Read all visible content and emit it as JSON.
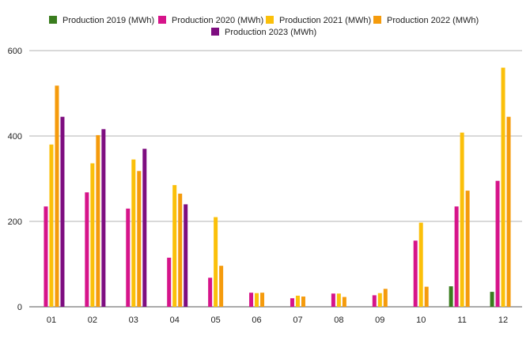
{
  "chart_data": {
    "type": "bar",
    "categories": [
      "01",
      "02",
      "03",
      "04",
      "05",
      "06",
      "07",
      "08",
      "09",
      "10",
      "11",
      "12"
    ],
    "series": [
      {
        "name": "Production 2019 (MWh)",
        "color": "#3a7d1e",
        "values": [
          null,
          null,
          null,
          null,
          null,
          null,
          null,
          null,
          null,
          null,
          48,
          35
        ]
      },
      {
        "name": "Production 2020 (MWh)",
        "color": "#d6148a",
        "values": [
          235,
          268,
          230,
          115,
          68,
          33,
          20,
          31,
          27,
          155,
          235,
          295
        ]
      },
      {
        "name": "Production 2021 (MWh)",
        "color": "#fbc00a",
        "values": [
          380,
          336,
          345,
          285,
          210,
          32,
          26,
          31,
          32,
          197,
          408,
          560
        ]
      },
      {
        "name": "Production 2022 (MWh)",
        "color": "#f59b0c",
        "values": [
          518,
          402,
          318,
          265,
          96,
          33,
          24,
          23,
          42,
          47,
          272,
          445
        ]
      },
      {
        "name": "Production 2023 (MWh)",
        "color": "#7e0e80",
        "values": [
          445,
          416,
          370,
          240,
          null,
          null,
          null,
          null,
          null,
          null,
          null,
          null
        ]
      }
    ],
    "ylim": [
      0,
      600
    ],
    "yticks": [
      0,
      200,
      400,
      600
    ],
    "grid": true,
    "legend_position": "top"
  }
}
